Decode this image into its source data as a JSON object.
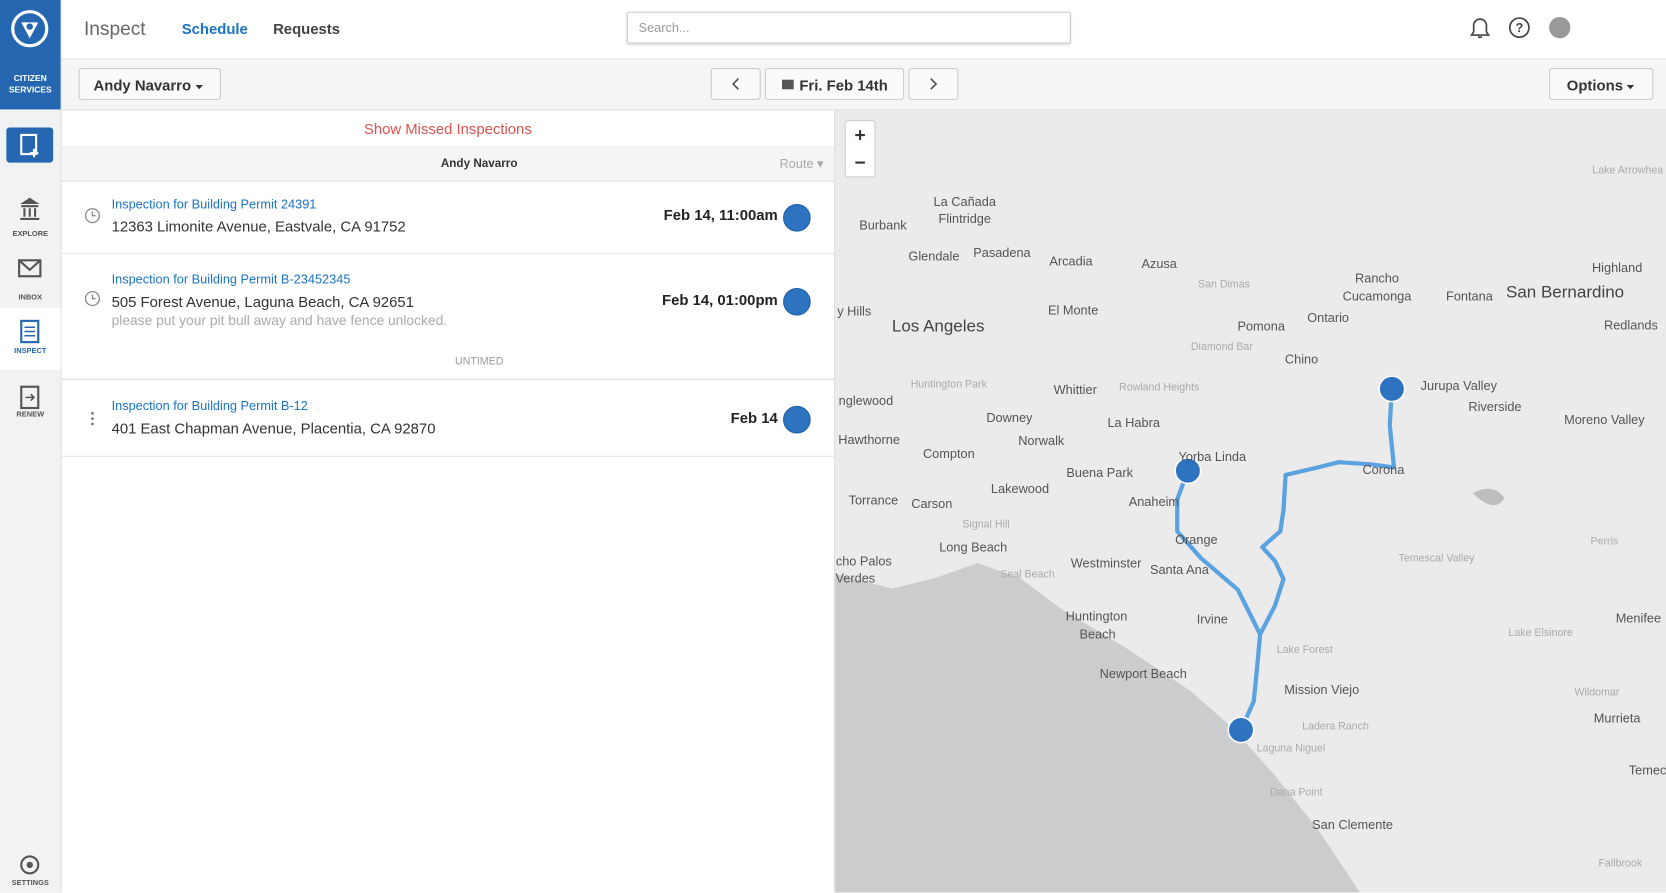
{
  "sidebar": {
    "brand": "CITIZEN SERVICES",
    "items": [
      "EXPLORE",
      "INBOX",
      "INSPECT",
      "RENEW"
    ],
    "settings": "SETTINGS"
  },
  "header": {
    "app": "Inspect",
    "tabs": [
      "Schedule",
      "Requests"
    ],
    "search_placeholder": "Search..."
  },
  "toolbar": {
    "inspector": "Andy Navarro",
    "date": "Fri. Feb 14th",
    "options": "Options"
  },
  "list": {
    "missed_link": "Show Missed Inspections",
    "group_header": "Andy Navarro",
    "sort": "Route",
    "items": [
      {
        "title": "Inspection for Building Permit 24391",
        "address": "12363 Limonite Avenue, Eastvale, CA 91752",
        "time": "Feb 14, 11:00am"
      },
      {
        "title": "Inspection for Building Permit B-23452345",
        "address": "505 Forest Avenue, Laguna Beach, CA 92651",
        "note": "please put your pit bull away and have fence unlocked.",
        "time": "Feb 14, 01:00pm"
      }
    ],
    "untimed_label": "UNTIMED",
    "untimed_items": [
      {
        "title": "Inspection for Building Permit B-12",
        "address": "401 East Chapman Avenue, Placentia, CA 92870",
        "time": "Feb 14"
      }
    ]
  },
  "map": {
    "places": [
      "La Cañada",
      "Flintridge",
      "Burbank",
      "Glendale",
      "Pasadena",
      "Arcadia",
      "Azusa",
      "San Dimas",
      "Rancho",
      "Cucamonga",
      "Fontana",
      "San Bernardino",
      "Highland",
      "Redlands",
      "Los Angeles",
      "y Hills",
      "El Monte",
      "Pomona",
      "Ontario",
      "Diamond Bar",
      "Chino",
      "Huntington Park",
      "Whittier",
      "Rowland Heights",
      "nglewood",
      "Downey",
      "La Habra",
      "Norwalk",
      "Hawthorne",
      "Jurupa Valley",
      "Riverside",
      "Moreno Valley",
      "Compton",
      "Yorba Linda",
      "Corona",
      "Buena Park",
      "Lakewood",
      "Anaheim",
      "Torrance",
      "Carson",
      "Signal Hill",
      "Long Beach",
      "Orange",
      "Westminster",
      "Santa Ana",
      "Seal Beach",
      "Temescal Valley",
      "Perris",
      "cho Palos",
      "Verdes",
      "Huntington",
      "Beach",
      "Irvine",
      "Menifee",
      "Lake Elsinore",
      "Lake Forest",
      "Newport Beach",
      "Mission Viejo",
      "Wildomar",
      "Murrieta",
      "Ladera Ranch",
      "Laguna Niguel",
      "Dana Point",
      "San Clemente",
      "Temecu",
      "Fallbrook",
      "Lake Arrowhea"
    ]
  }
}
